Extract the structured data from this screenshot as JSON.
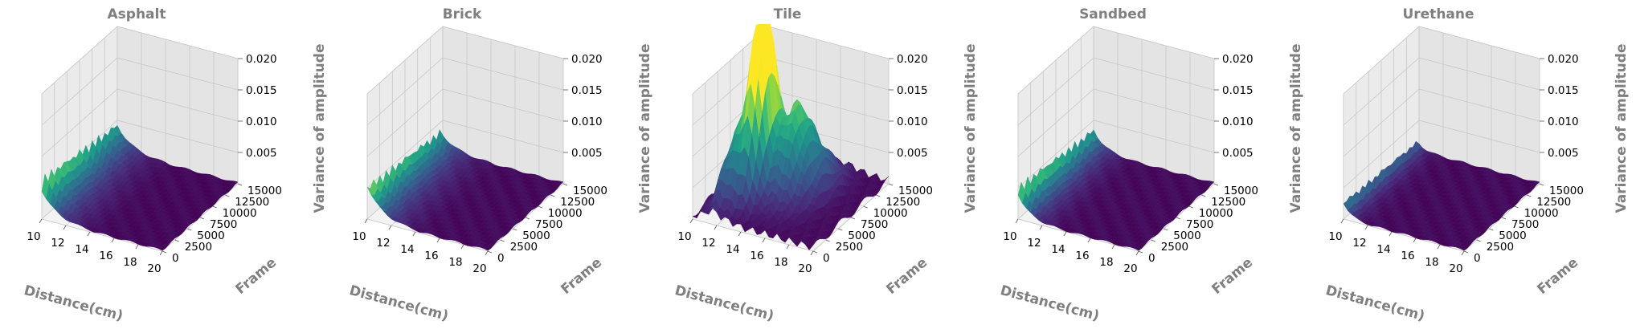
{
  "chart_data": [
    {
      "type": "surface",
      "title": "Asphalt",
      "xlabel": "Distance(cm)",
      "ylabel": "Frame",
      "zlabel": "Variance of amplitude",
      "x_ticks": [
        "10",
        "12",
        "14",
        "16",
        "18",
        "20"
      ],
      "y_ticks": [
        "0",
        "2500",
        "5000",
        "7500",
        "10000",
        "12500",
        "15000"
      ],
      "z_ticks": [
        "0.005",
        "0.010",
        "0.015",
        "0.020"
      ],
      "xlim": [
        10,
        20
      ],
      "ylim": [
        0,
        15000
      ],
      "zlim": [
        0,
        0.02
      ],
      "colormap": "viridis",
      "peak_variance": 0.0075,
      "decay_to_distance": 14
    },
    {
      "type": "surface",
      "title": "Brick",
      "xlabel": "Distance(cm)",
      "ylabel": "Frame",
      "zlabel": "Variance of amplitude",
      "x_ticks": [
        "10",
        "12",
        "14",
        "16",
        "18",
        "20"
      ],
      "y_ticks": [
        "0",
        "2500",
        "5000",
        "7500",
        "10000",
        "12500",
        "15000"
      ],
      "z_ticks": [
        "0.005",
        "0.010",
        "0.015",
        "0.020"
      ],
      "xlim": [
        10,
        20
      ],
      "ylim": [
        0,
        15000
      ],
      "zlim": [
        0,
        0.02
      ],
      "colormap": "viridis",
      "peak_variance": 0.006,
      "decay_to_distance": 14
    },
    {
      "type": "surface",
      "title": "Tile",
      "xlabel": "Distance(cm)",
      "ylabel": "Frame",
      "zlabel": "Variance of amplitude",
      "x_ticks": [
        "10",
        "12",
        "14",
        "16",
        "18",
        "20"
      ],
      "y_ticks": [
        "0",
        "2500",
        "5000",
        "7500",
        "10000",
        "12500",
        "15000"
      ],
      "z_ticks": [
        "0.005",
        "0.010",
        "0.015",
        "0.020"
      ],
      "xlim": [
        10,
        20
      ],
      "ylim": [
        0,
        15000
      ],
      "zlim": [
        0,
        0.02
      ],
      "colormap": "viridis",
      "peak_variance": 0.02,
      "decay_to_distance": 17
    },
    {
      "type": "surface",
      "title": "Sandbed",
      "xlabel": "Distance(cm)",
      "ylabel": "Frame",
      "zlabel": "Variance of amplitude",
      "x_ticks": [
        "10",
        "12",
        "14",
        "16",
        "18",
        "20"
      ],
      "y_ticks": [
        "0",
        "2500",
        "5000",
        "7500",
        "10000",
        "12500",
        "15000"
      ],
      "z_ticks": [
        "0.005",
        "0.010",
        "0.015",
        "0.020"
      ],
      "xlim": [
        10,
        20
      ],
      "ylim": [
        0,
        15000
      ],
      "zlim": [
        0,
        0.02
      ],
      "colormap": "viridis",
      "peak_variance": 0.006,
      "decay_to_distance": 13
    },
    {
      "type": "surface",
      "title": "Urethane",
      "xlabel": "Distance(cm)",
      "ylabel": "Frame",
      "zlabel": "Variance of amplitude",
      "x_ticks": [
        "10",
        "12",
        "14",
        "16",
        "18",
        "20"
      ],
      "y_ticks": [
        "0",
        "2500",
        "5000",
        "7500",
        "10000",
        "12500",
        "15000"
      ],
      "z_ticks": [
        "0.005",
        "0.010",
        "0.015",
        "0.020"
      ],
      "xlim": [
        10,
        20
      ],
      "ylim": [
        0,
        15000
      ],
      "zlim": [
        0,
        0.02
      ],
      "colormap": "viridis",
      "peak_variance": 0.003,
      "decay_to_distance": 12
    }
  ]
}
